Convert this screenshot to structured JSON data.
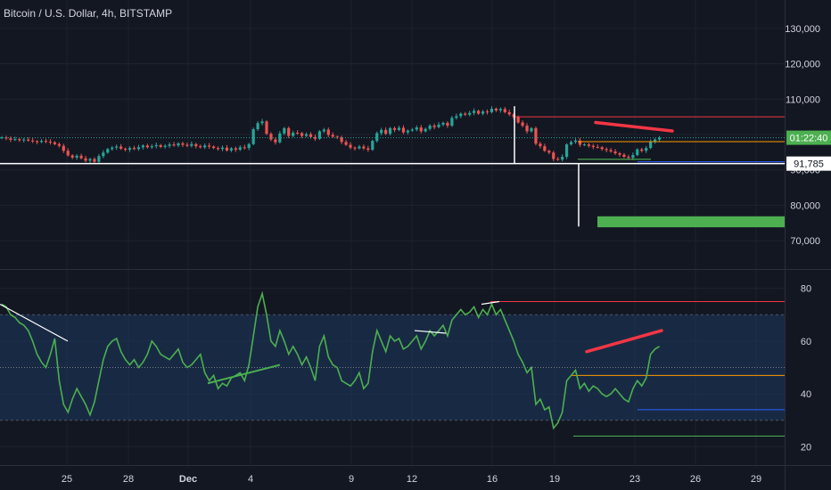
{
  "header": {
    "title": "Bitcoin / U.S. Dollar, 4h, BITSTAMP"
  },
  "price_badges": {
    "countdown": "01:22:40",
    "countdown_color": "#4caf50",
    "level": "91,785",
    "level_bg": "#ffffff"
  },
  "colors": {
    "background": "#131722",
    "candle_up": "#26a69a",
    "candle_down": "#ef5350",
    "rsi_line": "#4caf50",
    "rsi_band": "#1e3a5f",
    "annotation_red": "#f23645",
    "target_box": "#4caf50"
  },
  "chart_data": [
    {
      "type": "candlestick",
      "title": "Bitcoin / U.S. Dollar, 4h, BITSTAMP",
      "x_ticks": [
        "25",
        "28",
        "Dec",
        "4",
        "9",
        "12",
        "16",
        "19",
        "23",
        "26",
        "29"
      ],
      "y_ticks": [
        130000,
        120000,
        110000,
        90000,
        80000,
        70000
      ],
      "ylim": [
        62000,
        138000
      ],
      "grid": true,
      "close_series": [
        99200,
        98900,
        98500,
        98700,
        98400,
        98600,
        98300,
        98100,
        97900,
        98200,
        98000,
        97800,
        97300,
        96800,
        95400,
        94100,
        93500,
        94000,
        93300,
        92600,
        93100,
        92300,
        93900,
        94900,
        95900,
        96300,
        96600,
        96000,
        95700,
        96200,
        95900,
        96400,
        96900,
        96400,
        96700,
        97000,
        96500,
        96800,
        97200,
        96900,
        97500,
        97100,
        96800,
        97300,
        96700,
        96400,
        96900,
        96600,
        96200,
        95900,
        96300,
        95500,
        96100,
        95700,
        96400,
        96200,
        97300,
        101500,
        103200,
        103700,
        100200,
        98600,
        97800,
        100300,
        101800,
        99600,
        100500,
        100400,
        99600,
        100100,
        99300,
        98800,
        100900,
        101400,
        99900,
        99400,
        99200,
        97900,
        97100,
        96300,
        96100,
        96600,
        96100,
        95700,
        98200,
        100400,
        101300,
        100200,
        101800,
        101300,
        101900,
        100600,
        101100,
        101400,
        102000,
        100900,
        101600,
        102500,
        102100,
        102800,
        103300,
        102500,
        104700,
        105200,
        105900,
        105600,
        106100,
        106700,
        105900,
        106500,
        106300,
        107300,
        106800,
        107200,
        106300,
        105700,
        104900,
        103400,
        102500,
        100900,
        101800,
        97400,
        96700,
        95400,
        94900,
        93100,
        92900,
        93700,
        97200,
        97900,
        98300,
        97100,
        97200,
        96800,
        96500,
        96400,
        95900,
        95600,
        95200,
        94700,
        94300,
        93700,
        93400,
        94200,
        95800,
        95400,
        96200,
        97900,
        98600,
        99100
      ]
    },
    {
      "type": "line",
      "title": "",
      "y_ticks": [
        80,
        60,
        40,
        20
      ],
      "ylim": [
        13,
        87
      ],
      "band": [
        30,
        70
      ],
      "midline": 50,
      "series": [
        {
          "values": [
            74,
            73,
            70,
            69,
            67,
            66,
            64,
            60,
            55,
            52,
            50,
            55,
            61,
            45,
            36,
            33,
            38,
            42,
            39,
            36,
            32,
            37,
            45,
            53,
            58,
            60,
            61,
            56,
            53,
            51,
            53,
            50,
            52,
            55,
            60,
            58,
            55,
            54,
            53,
            55,
            57,
            52,
            50,
            51,
            53,
            55,
            48,
            45,
            47,
            42,
            44,
            43,
            46,
            47,
            48,
            45,
            51,
            62,
            73,
            78,
            70,
            60,
            58,
            64,
            60,
            55,
            58,
            55,
            51,
            54,
            50,
            45,
            58,
            62,
            54,
            51,
            50,
            45,
            44,
            43,
            45,
            48,
            42,
            44,
            56,
            64,
            60,
            56,
            62,
            60,
            61,
            57,
            58,
            60,
            62,
            57,
            60,
            64,
            62,
            64,
            66,
            62,
            68,
            70,
            72,
            70,
            71,
            73,
            69,
            72,
            70,
            74,
            70,
            72,
            68,
            64,
            60,
            55,
            52,
            48,
            50,
            36,
            38,
            34,
            35,
            27,
            29,
            33,
            45,
            47,
            49,
            42,
            44,
            41,
            43,
            42,
            40,
            39,
            40,
            42,
            40,
            38,
            37,
            42,
            45,
            43,
            46,
            55,
            57,
            58
          ]
        }
      ]
    }
  ]
}
